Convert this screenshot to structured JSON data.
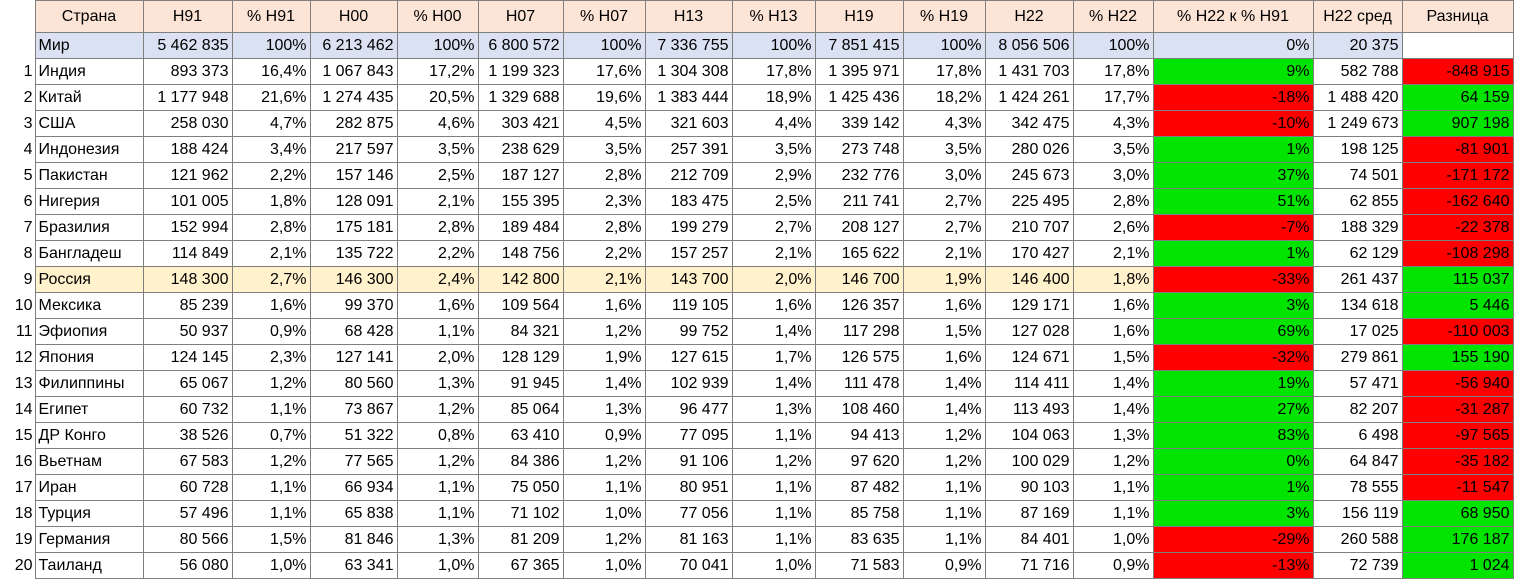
{
  "table": {
    "columns": [
      "Страна",
      "Н91",
      "% Н91",
      "Н00",
      "% Н00",
      "Н07",
      "% Н07",
      "Н13",
      "% Н13",
      "Н19",
      "% Н19",
      "Н22",
      "% Н22",
      "% Н22 к % Н91",
      "Н22 сред",
      "Разница"
    ],
    "world": {
      "cells": [
        "Мир",
        "5 462 835",
        "100%",
        "6 213 462",
        "100%",
        "6 800 572",
        "100%",
        "7 336 755",
        "100%",
        "7 851 415",
        "100%",
        "8 056 506",
        "100%",
        "0%",
        "20 375"
      ]
    },
    "rows": [
      {
        "num": 1,
        "cells": [
          "Индия",
          "893 373",
          "16,4%",
          "1 067 843",
          "17,2%",
          "1 199 323",
          "17,6%",
          "1 304 308",
          "17,8%",
          "1 395 971",
          "17,8%",
          "1 431 703",
          "17,8%",
          "9%",
          "582 788",
          "-848 915"
        ]
      },
      {
        "num": 2,
        "cells": [
          "Китай",
          "1 177 948",
          "21,6%",
          "1 274 435",
          "20,5%",
          "1 329 688",
          "19,6%",
          "1 383 444",
          "18,9%",
          "1 425 436",
          "18,2%",
          "1 424 261",
          "17,7%",
          "-18%",
          "1 488 420",
          "64 159"
        ]
      },
      {
        "num": 3,
        "cells": [
          "США",
          "258 030",
          "4,7%",
          "282 875",
          "4,6%",
          "303 421",
          "4,5%",
          "321 603",
          "4,4%",
          "339 142",
          "4,3%",
          "342 475",
          "4,3%",
          "-10%",
          "1 249 673",
          "907 198"
        ]
      },
      {
        "num": 4,
        "cells": [
          "Индонезия",
          "188 424",
          "3,4%",
          "217 597",
          "3,5%",
          "238 629",
          "3,5%",
          "257 391",
          "3,5%",
          "273 748",
          "3,5%",
          "280 026",
          "3,5%",
          "1%",
          "198 125",
          "-81 901"
        ]
      },
      {
        "num": 5,
        "cells": [
          "Пакистан",
          "121 962",
          "2,2%",
          "157 146",
          "2,5%",
          "187 127",
          "2,8%",
          "212 709",
          "2,9%",
          "232 776",
          "3,0%",
          "245 673",
          "3,0%",
          "37%",
          "74 501",
          "-171 172"
        ]
      },
      {
        "num": 6,
        "cells": [
          "Нигерия",
          "101 005",
          "1,8%",
          "128 091",
          "2,1%",
          "155 395",
          "2,3%",
          "183 475",
          "2,5%",
          "211 741",
          "2,7%",
          "225 495",
          "2,8%",
          "51%",
          "62 855",
          "-162 640"
        ]
      },
      {
        "num": 7,
        "cells": [
          "Бразилия",
          "152 994",
          "2,8%",
          "175 181",
          "2,8%",
          "189 484",
          "2,8%",
          "199 279",
          "2,7%",
          "208 127",
          "2,7%",
          "210 707",
          "2,6%",
          "-7%",
          "188 329",
          "-22 378"
        ]
      },
      {
        "num": 8,
        "cells": [
          "Бангладеш",
          "114 849",
          "2,1%",
          "135 722",
          "2,2%",
          "148 756",
          "2,2%",
          "157 257",
          "2,1%",
          "165 622",
          "2,1%",
          "170 427",
          "2,1%",
          "1%",
          "62 129",
          "-108 298"
        ]
      },
      {
        "num": 9,
        "cells": [
          "Россия",
          "148 300",
          "2,7%",
          "146 300",
          "2,4%",
          "142 800",
          "2,1%",
          "143 700",
          "2,0%",
          "146 700",
          "1,9%",
          "146 400",
          "1,8%",
          "-33%",
          "261 437",
          "115 037"
        ]
      },
      {
        "num": 10,
        "cells": [
          "Мексика",
          "85 239",
          "1,6%",
          "99 370",
          "1,6%",
          "109 564",
          "1,6%",
          "119 105",
          "1,6%",
          "126 357",
          "1,6%",
          "129 171",
          "1,6%",
          "3%",
          "134 618",
          "5 446"
        ]
      },
      {
        "num": 11,
        "cells": [
          "Эфиопия",
          "50 937",
          "0,9%",
          "68 428",
          "1,1%",
          "84 321",
          "1,2%",
          "99 752",
          "1,4%",
          "117 298",
          "1,5%",
          "127 028",
          "1,6%",
          "69%",
          "17 025",
          "-110 003"
        ]
      },
      {
        "num": 12,
        "cells": [
          "Япония",
          "124 145",
          "2,3%",
          "127 141",
          "2,0%",
          "128 129",
          "1,9%",
          "127 615",
          "1,7%",
          "126 575",
          "1,6%",
          "124 671",
          "1,5%",
          "-32%",
          "279 861",
          "155 190"
        ]
      },
      {
        "num": 13,
        "cells": [
          "Филиппины",
          "65 067",
          "1,2%",
          "80 560",
          "1,3%",
          "91 945",
          "1,4%",
          "102 939",
          "1,4%",
          "111 478",
          "1,4%",
          "114 411",
          "1,4%",
          "19%",
          "57 471",
          "-56 940"
        ]
      },
      {
        "num": 14,
        "cells": [
          "Египет",
          "60 732",
          "1,1%",
          "73 867",
          "1,2%",
          "85 064",
          "1,3%",
          "96 477",
          "1,3%",
          "108 460",
          "1,4%",
          "113 493",
          "1,4%",
          "27%",
          "82 207",
          "-31 287"
        ]
      },
      {
        "num": 15,
        "cells": [
          "ДР Конго",
          "38 526",
          "0,7%",
          "51 322",
          "0,8%",
          "63 410",
          "0,9%",
          "77 095",
          "1,1%",
          "94 413",
          "1,2%",
          "104 063",
          "1,3%",
          "83%",
          "6 498",
          "-97 565"
        ]
      },
      {
        "num": 16,
        "cells": [
          "Вьетнам",
          "67 583",
          "1,2%",
          "77 565",
          "1,2%",
          "84 386",
          "1,2%",
          "91 106",
          "1,2%",
          "97 620",
          "1,2%",
          "100 029",
          "1,2%",
          "0%",
          "64 847",
          "-35 182"
        ]
      },
      {
        "num": 17,
        "cells": [
          "Иран",
          "60 728",
          "1,1%",
          "66 934",
          "1,1%",
          "75 050",
          "1,1%",
          "80 951",
          "1,1%",
          "87 482",
          "1,1%",
          "90 103",
          "1,1%",
          "1%",
          "78 555",
          "-11 547"
        ]
      },
      {
        "num": 18,
        "cells": [
          "Турция",
          "57 496",
          "1,1%",
          "65 838",
          "1,1%",
          "71 102",
          "1,0%",
          "77 056",
          "1,1%",
          "85 758",
          "1,1%",
          "87 169",
          "1,1%",
          "3%",
          "156 119",
          "68 950"
        ]
      },
      {
        "num": 19,
        "cells": [
          "Германия",
          "80 566",
          "1,5%",
          "81 846",
          "1,3%",
          "81 209",
          "1,2%",
          "81 163",
          "1,1%",
          "83 635",
          "1,1%",
          "84 401",
          "1,0%",
          "-29%",
          "260 588",
          "176 187"
        ]
      },
      {
        "num": 20,
        "cells": [
          "Таиланд",
          "56 080",
          "1,0%",
          "63 341",
          "1,0%",
          "67 365",
          "1,0%",
          "70 041",
          "1,0%",
          "71 583",
          "0,9%",
          "71 716",
          "0,9%",
          "-13%",
          "72 739",
          "1 024"
        ]
      }
    ]
  }
}
